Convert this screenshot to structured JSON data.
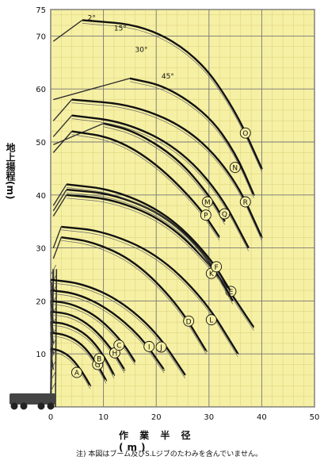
{
  "chart_data": {
    "type": "line",
    "xlabel": "作 業 半 径 (m)",
    "ylabel": "地上揚程(m)",
    "xlim": [
      0,
      50
    ],
    "ylim": [
      0,
      75
    ],
    "x_ticks": [
      0,
      10,
      20,
      30,
      40,
      50
    ],
    "y_ticks": [
      10,
      20,
      30,
      40,
      50,
      60,
      70,
      75
    ],
    "grid": true,
    "note": "注) 本図はブーム及びS.Lジブのたわみを含んでいません。",
    "background": "#f6f0a4",
    "line_color": "#111111",
    "series": [
      {
        "name": "A",
        "x": [
          0,
          2,
          4,
          6,
          7.5
        ],
        "y": [
          11,
          10.6,
          9.2,
          6.6,
          4.0
        ]
      },
      {
        "name": "G",
        "x": [
          0,
          3,
          6,
          8.5,
          10.5
        ],
        "y": [
          14,
          13.6,
          11.8,
          8.6,
          5.0
        ]
      },
      {
        "name": "B",
        "x": [
          0,
          3,
          7,
          10,
          12
        ],
        "y": [
          16,
          15.7,
          13.6,
          9.8,
          6.0
        ]
      },
      {
        "name": "H",
        "x": [
          0,
          4,
          8,
          11.5,
          14
        ],
        "y": [
          18,
          17.5,
          15.0,
          11.0,
          7.0
        ]
      },
      {
        "name": "C",
        "x": [
          0,
          4,
          9,
          13.5,
          16
        ],
        "y": [
          20,
          19.5,
          17.0,
          12.4,
          8.5
        ]
      },
      {
        "name": "I",
        "x": [
          0,
          5,
          11,
          17,
          21.5
        ],
        "y": [
          22,
          21.4,
          18.5,
          13.4,
          7.0
        ]
      },
      {
        "name": "J",
        "x": [
          0,
          6,
          13,
          20,
          25.5
        ],
        "y": [
          24,
          23.3,
          20.2,
          14.2,
          6.0
        ]
      },
      {
        "name": "D",
        "x": [
          2,
          8,
          16,
          24,
          29.5
        ],
        "y": [
          32,
          31.2,
          27.5,
          19.5,
          10.5
        ]
      },
      {
        "name": "L",
        "x": [
          2,
          10,
          20,
          29,
          35.5
        ],
        "y": [
          34,
          33.2,
          29.0,
          20.5,
          10.0
        ]
      },
      {
        "name": "E",
        "x": [
          3,
          12,
          22,
          31,
          38.5
        ],
        "y": [
          40,
          39.2,
          35.0,
          26.2,
          15.0
        ]
      },
      {
        "name": "K",
        "x": [
          3,
          12,
          22,
          30,
          34.5
        ],
        "y": [
          41,
          40.2,
          36.0,
          28.0,
          20.0
        ]
      },
      {
        "name": "F",
        "x": [
          3,
          12,
          22,
          30,
          34
        ],
        "y": [
          42,
          41.0,
          36.5,
          28.5,
          22.0
        ]
      },
      {
        "name": "M",
        "x": [
          10,
          16,
          24,
          30,
          33
        ],
        "y": [
          53.5,
          52.0,
          47.0,
          40.0,
          35.0
        ]
      },
      {
        "name": "P",
        "x": [
          4,
          12,
          20,
          28,
          32
        ],
        "y": [
          52,
          50.8,
          46.0,
          38.0,
          32.0
        ]
      },
      {
        "name": "Q",
        "x": [
          4,
          14,
          24,
          32,
          37.5
        ],
        "y": [
          55,
          53.8,
          49.0,
          40.5,
          30.0
        ]
      },
      {
        "name": "R",
        "x": [
          4,
          16,
          27,
          35,
          40
        ],
        "y": [
          58,
          57.0,
          52.0,
          43.0,
          32.0
        ]
      },
      {
        "name": "N",
        "x": [
          15,
          22,
          30,
          35,
          38.5
        ],
        "y": [
          62,
          60.5,
          55.0,
          48.0,
          40.0
        ]
      },
      {
        "name": "O",
        "x": [
          6,
          18,
          28,
          35,
          40
        ],
        "y": [
          73,
          72.0,
          66.0,
          56.0,
          45.0
        ]
      }
    ],
    "jib_offset_labels": [
      {
        "text": "2°",
        "x": 7,
        "y": 73
      },
      {
        "text": "15°",
        "x": 12,
        "y": 71
      },
      {
        "text": "30°",
        "x": 16,
        "y": 67
      },
      {
        "text": "45°",
        "x": 21,
        "y": 62
      }
    ]
  }
}
